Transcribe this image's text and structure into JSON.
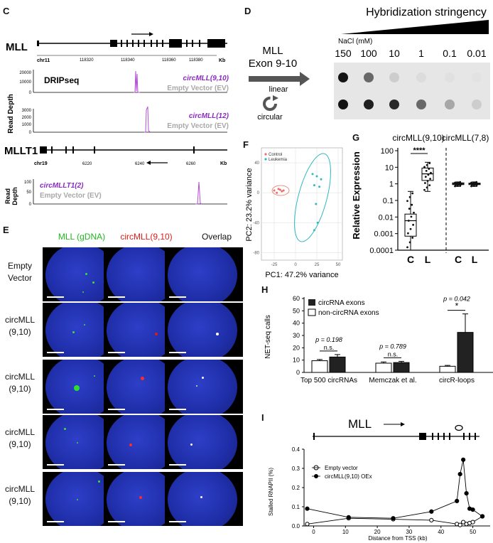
{
  "panels": {
    "c": "C",
    "d": "D",
    "e": "E",
    "f": "F",
    "g": "G",
    "h": "H",
    "i": "I"
  },
  "panelC": {
    "gene1": "MLL",
    "chr1": "chr11",
    "ticks1": [
      "118320",
      "118340",
      "118360",
      "118380"
    ],
    "kb": "Kb",
    "ylabel": "Read Depth",
    "track1": {
      "label": "DRIPseq",
      "series1": "circMLL(9,10)",
      "series2": "Empty Vector (EV)",
      "yticks": [
        "20000",
        "10000",
        "0"
      ]
    },
    "track2": {
      "series1": "circMLL(12)",
      "series2": "Empty Vector (EV)",
      "yticks": [
        "3000",
        "2000",
        "1000",
        "0"
      ]
    },
    "gene2": "MLLT1",
    "chr2": "chr19",
    "ticks2": [
      "6220",
      "6240",
      "6260"
    ],
    "track3": {
      "ylabel1": "Read",
      "ylabel2": "Depth",
      "series1": "circMLLT1(2)",
      "series2": "Empty Vector (EV)",
      "yticks": [
        "100",
        "50",
        "0"
      ]
    }
  },
  "panelD": {
    "title": "Hybridization stringency",
    "construct1": "MLL",
    "construct2": "Exon 9-10",
    "linear": "linear",
    "circular": "circular",
    "nacl": "NaCl (mM)",
    "concentrations": [
      "150",
      "100",
      "10",
      "1",
      "0.1",
      "0.01"
    ],
    "linear_intensity": [
      1.0,
      0.6,
      0.12,
      0.05,
      0.03,
      0.02
    ],
    "circular_intensity": [
      1.0,
      0.95,
      0.9,
      0.6,
      0.3,
      0.12
    ]
  },
  "panelE": {
    "col1": "MLL (gDNA)",
    "col2": "circMLL(9,10)",
    "col3": "Overlap",
    "row1a": "Empty",
    "row1b": "Vector",
    "rowa": "circMLL",
    "rowb": "(9,10)"
  },
  "chart_data": [
    {
      "type": "scatter",
      "panel": "F",
      "xlabel": "PC1: 47.2% variance",
      "ylabel": "PC2: 23.2% variance",
      "xticks": [
        "-25",
        "0",
        "25",
        "50"
      ],
      "yticks": [
        "40",
        "0",
        "-40",
        "-80"
      ],
      "series": [
        {
          "name": "Control",
          "color": "#e8706a",
          "points": [
            [
              -25,
              3
            ],
            [
              -22,
              0
            ],
            [
              -20,
              5
            ],
            [
              -18,
              4
            ],
            [
              -16,
              2
            ],
            [
              -14,
              3
            ]
          ]
        },
        {
          "name": "Leukemia",
          "color": "#2fb8c0",
          "points": [
            [
              20,
              25
            ],
            [
              22,
              10
            ],
            [
              25,
              22
            ],
            [
              28,
              8
            ],
            [
              30,
              18
            ],
            [
              24,
              -15
            ],
            [
              26,
              -40
            ],
            [
              22,
              -50
            ]
          ]
        }
      ]
    },
    {
      "type": "box",
      "panel": "G",
      "groups": [
        "circMLL(9,10)",
        "circMLL(7,8)"
      ],
      "categories": [
        "C",
        "L",
        "C",
        "L"
      ],
      "ylabel": "Relative Expression",
      "yscale": "log",
      "yticks": [
        "100",
        "10",
        "1",
        "0.1",
        "0.01",
        "0.001",
        "0.0001"
      ],
      "significance": "****",
      "boxes": [
        {
          "min": 0.0001,
          "q1": 0.0007,
          "median": 0.006,
          "q3": 0.015,
          "max": 0.35
        },
        {
          "min": 0.35,
          "q1": 1.6,
          "median": 4,
          "q3": 9,
          "max": 20
        },
        {
          "min": 0.7,
          "q1": 0.9,
          "median": 1.0,
          "q3": 1.15,
          "max": 1.3
        },
        {
          "min": 0.7,
          "q1": 0.9,
          "median": 1.0,
          "q3": 1.1,
          "max": 1.3
        }
      ]
    },
    {
      "type": "bar",
      "panel": "H",
      "categories": [
        "Top 500 circRNAs",
        "Memczak et al.",
        "circR-loops"
      ],
      "ylabel": "NET-seq calls",
      "ylim": [
        0,
        60
      ],
      "yticks": [
        "60",
        "50",
        "40",
        "30",
        "20",
        "10",
        "0"
      ],
      "series": [
        {
          "name": "non-circRNA exons",
          "color": "#ffffff",
          "values": [
            9.5,
            7.5,
            5
          ],
          "errors": [
            1,
            1,
            0.7
          ]
        },
        {
          "name": "circRNA exons",
          "color": "#222222",
          "values": [
            12.5,
            8.0,
            32.5
          ],
          "errors": [
            2,
            1,
            15
          ]
        }
      ],
      "annotations": [
        {
          "p": "p = 0.198",
          "sig": "n.s."
        },
        {
          "p": "p = 0.789",
          "sig": "n.s."
        },
        {
          "p": "p = 0.042",
          "sig": "*"
        }
      ]
    },
    {
      "type": "line",
      "panel": "I",
      "gene": "MLL",
      "xlabel": "Distance from TSS  (kb)",
      "ylabel": "Stalled RNAPII  (%)",
      "xlim": [
        -3,
        55
      ],
      "ylim": [
        0,
        0.4
      ],
      "xticks": [
        "0",
        "10",
        "20",
        "30",
        "40",
        "50"
      ],
      "yticks": [
        "0.4",
        "0.3",
        "0.2",
        "0.1",
        "0.0"
      ],
      "series": [
        {
          "name": "Empty vector",
          "marker": "open",
          "x": [
            -2,
            11,
            25,
            37,
            45,
            46,
            47,
            48,
            49,
            50,
            53
          ],
          "y": [
            0.01,
            0.04,
            0.035,
            0.03,
            0.01,
            0.005,
            0.02,
            0.01,
            0.015,
            0.02,
            0.05
          ]
        },
        {
          "name": "circMLL(9,10)  OEx",
          "marker": "filled",
          "x": [
            -2,
            11,
            25,
            37,
            45,
            46,
            47,
            48,
            49,
            50,
            53
          ],
          "y": [
            0.09,
            0.045,
            0.04,
            0.075,
            0.13,
            0.27,
            0.345,
            0.17,
            0.09,
            0.085,
            0.05
          ]
        }
      ]
    }
  ]
}
